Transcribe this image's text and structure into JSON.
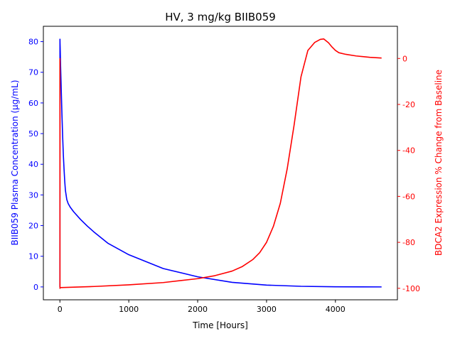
{
  "chart_data": {
    "type": "line",
    "title": "HV, 3 mg/kg BIIB059",
    "xlabel": "Time [Hours]",
    "ylabel_left": "BIIB059 Plasma Concentration (µg/mL)",
    "ylabel_right": "BDCA2 Expression % Change from Baseline",
    "xlim": [
      -240,
      4900
    ],
    "ylim_left": [
      -4.2,
      85
    ],
    "ylim_right": [
      -105,
      14
    ],
    "x_ticks": [
      "0",
      "1000",
      "2000",
      "3000",
      "4000"
    ],
    "y_ticks_left": [
      "0",
      "10",
      "20",
      "30",
      "40",
      "50",
      "60",
      "70",
      "80"
    ],
    "y_ticks_right": [
      "-100",
      "-80",
      "-60",
      "-40",
      "-20",
      "0"
    ],
    "grid": false,
    "series": [
      {
        "color": "#0000ff",
        "axis": "left",
        "x": [
          0,
          1,
          2,
          5,
          10,
          20,
          30,
          40,
          50,
          60,
          70,
          80,
          100,
          120,
          150,
          200,
          300,
          400,
          500,
          700,
          1000,
          1500,
          2000,
          2500,
          3000,
          3500,
          4000,
          4670
        ],
        "y": [
          0,
          80.8,
          79.5,
          77,
          72,
          64,
          56,
          49,
          43,
          38.5,
          34.5,
          31.5,
          28.5,
          27.2,
          26,
          24.5,
          22,
          19.8,
          17.8,
          14.2,
          10.5,
          6.0,
          3.3,
          1.5,
          0.6,
          0.2,
          0.05,
          0
        ]
      },
      {
        "color": "#ff0000",
        "axis": "right",
        "x": [
          0,
          0.5,
          1,
          3,
          10,
          500,
          1000,
          1500,
          2000,
          2250,
          2500,
          2650,
          2800,
          2900,
          3000,
          3100,
          3200,
          3300,
          3400,
          3500,
          3600,
          3700,
          3780,
          3830,
          3900,
          3950,
          4000,
          4050,
          4150,
          4300,
          4500,
          4670
        ],
        "y": [
          0,
          0,
          -100,
          -99.7,
          -99.7,
          -99.2,
          -98.5,
          -97.5,
          -95.8,
          -94.5,
          -92.5,
          -90.5,
          -87.5,
          -84.5,
          -80,
          -73,
          -63,
          -48,
          -29,
          -8,
          3.5,
          7,
          8.3,
          8.5,
          6.8,
          5,
          3.5,
          2.5,
          1.8,
          1.1,
          0.5,
          0.2
        ]
      }
    ]
  }
}
